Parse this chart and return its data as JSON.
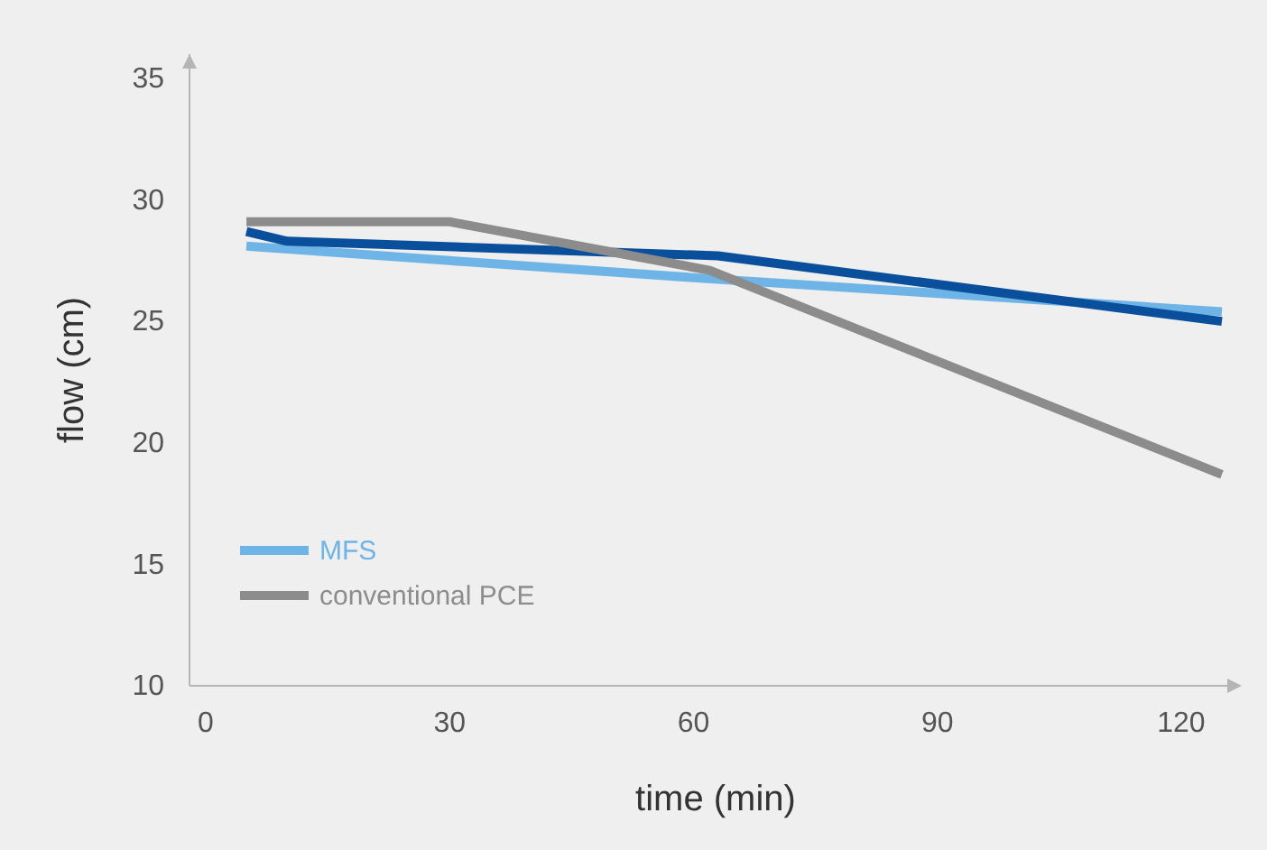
{
  "chart_data": {
    "type": "line",
    "xlabel": "time (min)",
    "ylabel": "flow (cm)",
    "xlim": [
      -2,
      127
    ],
    "ylim": [
      10,
      36
    ],
    "xticks": [
      0,
      30,
      60,
      90,
      120
    ],
    "yticks": [
      10,
      15,
      20,
      25,
      30,
      35
    ],
    "grid": false,
    "legend": "bottom left",
    "marker": "none",
    "line_style": "solid",
    "series": [
      {
        "name": "MFS",
        "color": "#6fb4e6",
        "x": [
          5,
          30,
          60,
          125
        ],
        "values": [
          28.1,
          27.5,
          26.8,
          25.4
        ]
      },
      {
        "color": "#0a4f9c",
        "x": [
          5,
          10,
          63,
          125
        ],
        "values": [
          28.7,
          28.3,
          27.7,
          25.0
        ]
      },
      {
        "name": "conventional PCE",
        "color": "#8c8c8c",
        "x": [
          5,
          30,
          62,
          125
        ],
        "values": [
          29.1,
          29.1,
          27.1,
          18.7
        ]
      }
    ]
  }
}
